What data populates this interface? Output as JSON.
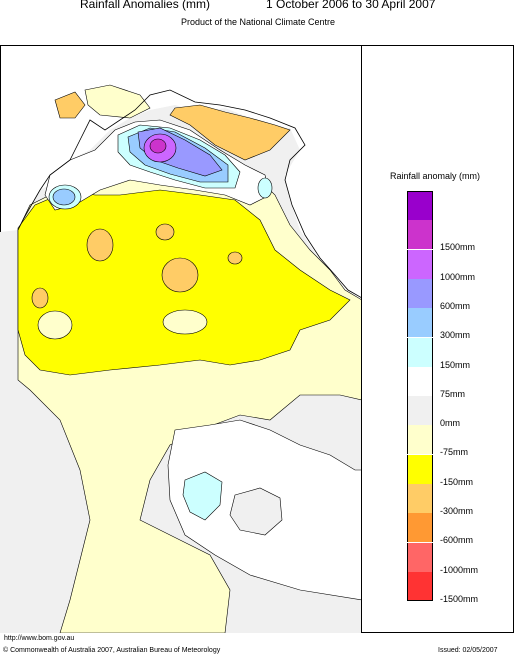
{
  "header": {
    "title": "Rainfall Anomalies (mm)",
    "period": "1 October 2006 to 30 April 2007",
    "subtitle": "Product of the National Climate Centre"
  },
  "legend": {
    "title": "Rainfall anomaly (mm)",
    "items": [
      {
        "label": "",
        "color": "#9900cc"
      },
      {
        "label": "1500mm",
        "color": "#cc33cc"
      },
      {
        "label": "1000mm",
        "color": "#cc66ff"
      },
      {
        "label": "600mm",
        "color": "#9999ff"
      },
      {
        "label": "300mm",
        "color": "#99ccff"
      },
      {
        "label": "150mm",
        "color": "#ccffff"
      },
      {
        "label": "75mm",
        "color": "#ffffff"
      },
      {
        "label": "0mm",
        "color": "#f0f0f0"
      },
      {
        "label": "-75mm",
        "color": "#ffffcc"
      },
      {
        "label": "-150mm",
        "color": "#ffff00"
      },
      {
        "label": "-300mm",
        "color": "#ffcc66"
      },
      {
        "label": "-600mm",
        "color": "#ff9933"
      },
      {
        "label": "-1000mm",
        "color": "#ff6666"
      },
      {
        "label": "-1500mm",
        "color": "#ff3333"
      }
    ]
  },
  "footer": {
    "url": "http://www.bom.gov.au",
    "copyright": "© Commonwealth of Australia 2007, Australian Bureau of Meteorology",
    "issued": "Issued: 02/05/2007"
  }
}
